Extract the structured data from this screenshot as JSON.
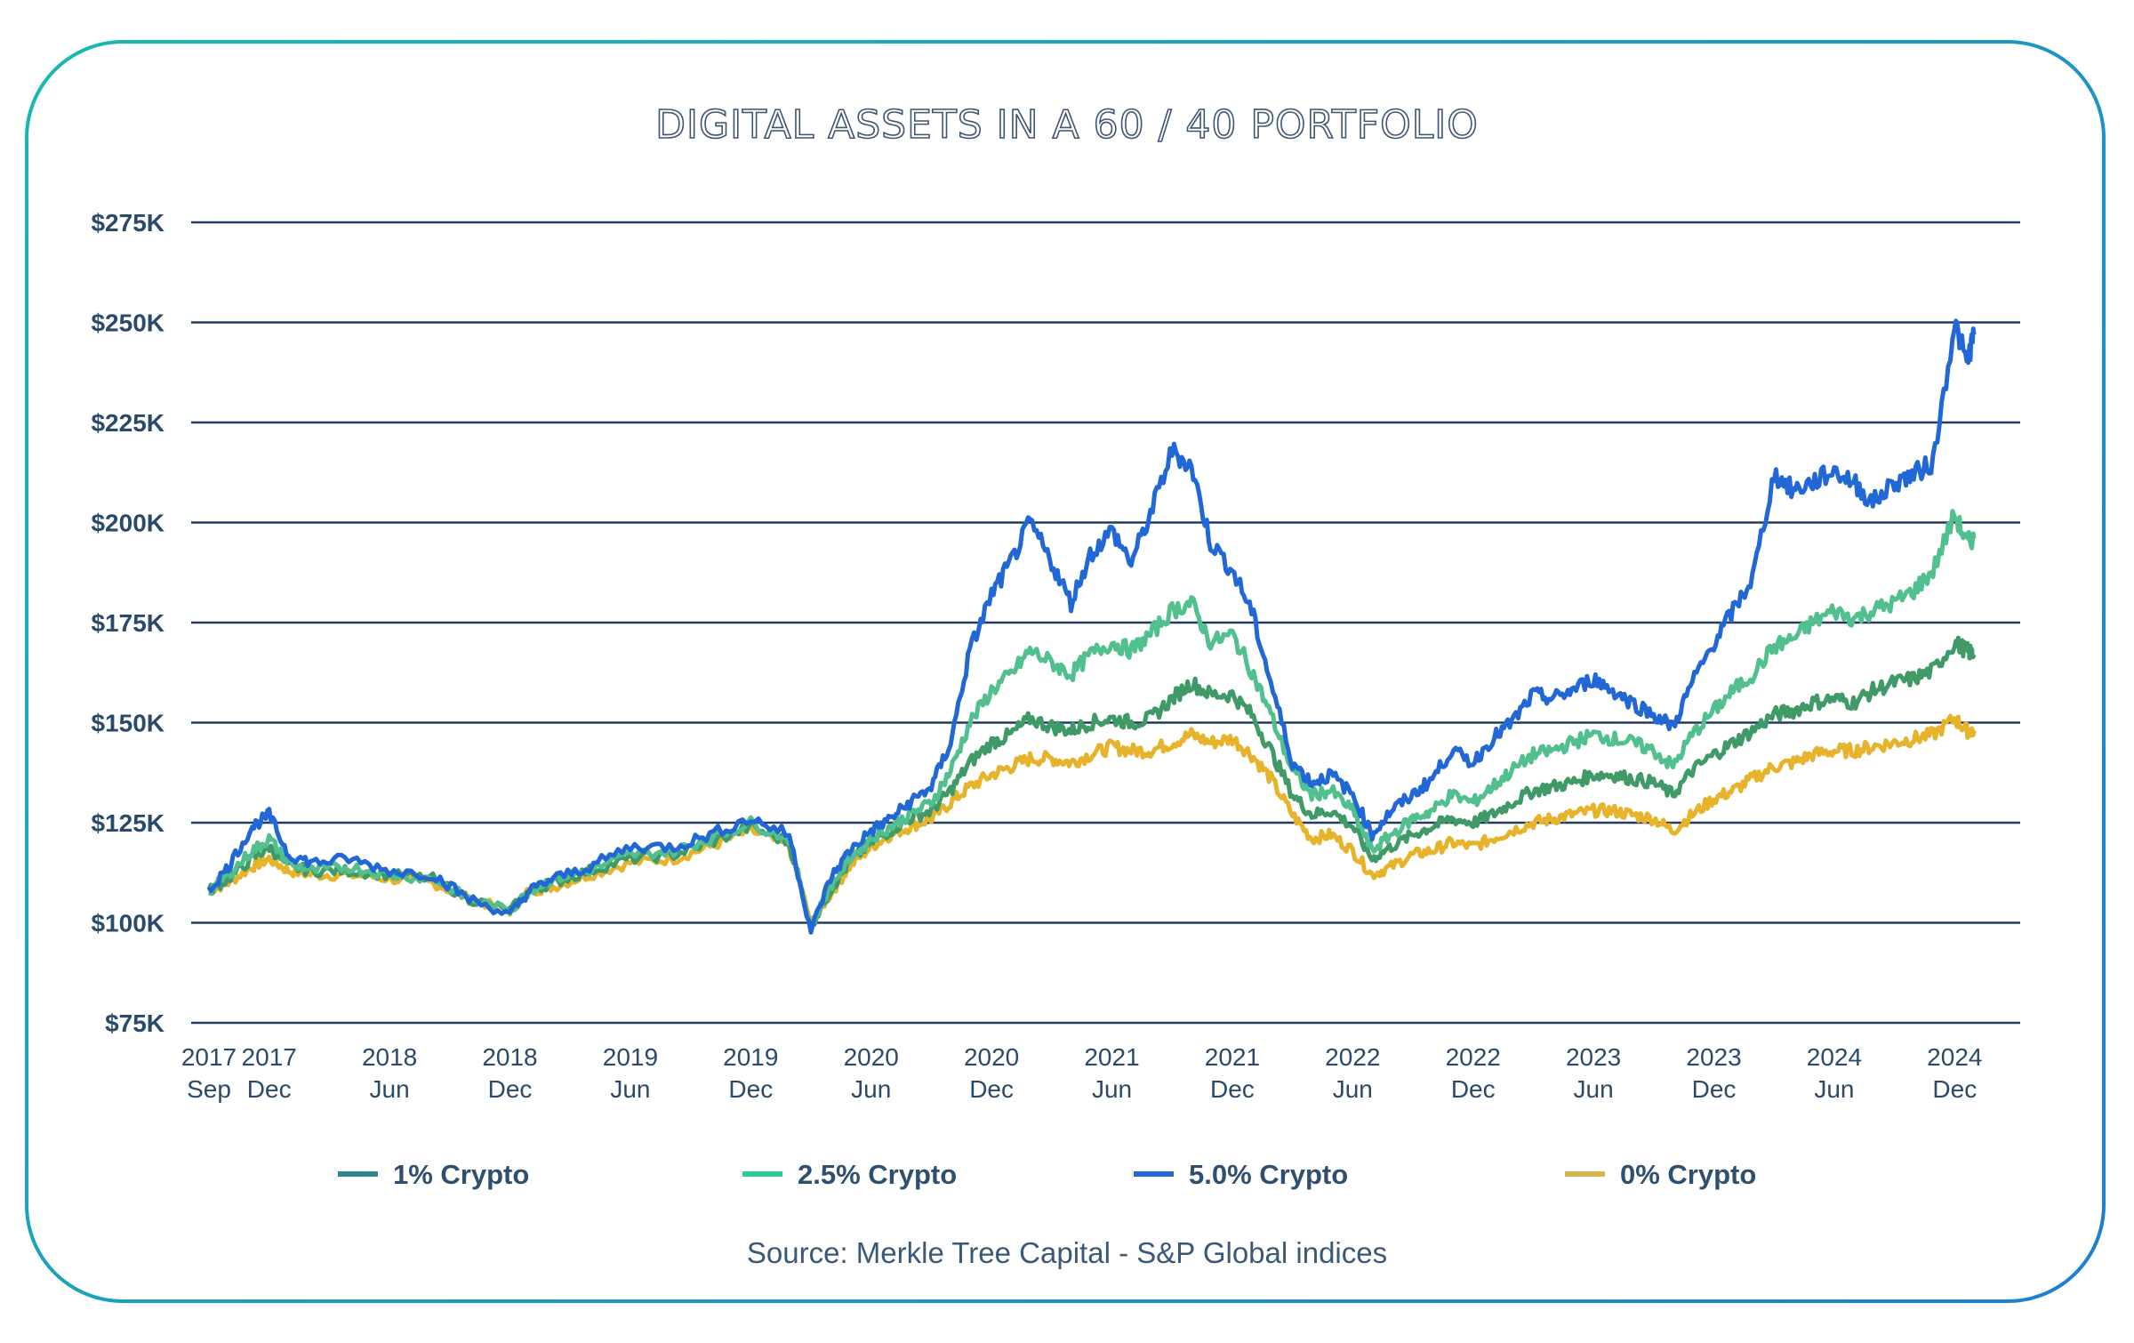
{
  "chart_data": {
    "type": "line",
    "title": "DIGITAL ASSETS IN A 60 / 40 PORTFOLIO",
    "source": "Source: Merkle Tree Capital  - S&P Global indices",
    "ylim": [
      75000,
      275000
    ],
    "y_ticks": [
      {
        "value": 75000,
        "label": "$75K"
      },
      {
        "value": 100000,
        "label": "$100K"
      },
      {
        "value": 125000,
        "label": "$125K"
      },
      {
        "value": 150000,
        "label": "$150K"
      },
      {
        "value": 175000,
        "label": "$175K"
      },
      {
        "value": 200000,
        "label": "$200K"
      },
      {
        "value": 225000,
        "label": "$225K"
      },
      {
        "value": 250000,
        "label": "$250K"
      },
      {
        "value": 275000,
        "label": "$275K"
      }
    ],
    "x_range": [
      2017.67,
      2025.0
    ],
    "x_ticks": [
      {
        "x": 2017.67,
        "year": "2017",
        "month": "Sep"
      },
      {
        "x": 2017.92,
        "year": "2017",
        "month": "Dec"
      },
      {
        "x": 2018.42,
        "year": "2018",
        "month": "Jun"
      },
      {
        "x": 2018.92,
        "year": "2018",
        "month": "Dec"
      },
      {
        "x": 2019.42,
        "year": "2019",
        "month": "Jun"
      },
      {
        "x": 2019.92,
        "year": "2019",
        "month": "Dec"
      },
      {
        "x": 2020.42,
        "year": "2020",
        "month": "Jun"
      },
      {
        "x": 2020.92,
        "year": "2020",
        "month": "Dec"
      },
      {
        "x": 2021.42,
        "year": "2021",
        "month": "Jun"
      },
      {
        "x": 2021.92,
        "year": "2021",
        "month": "Dec"
      },
      {
        "x": 2022.42,
        "year": "2022",
        "month": "Jun"
      },
      {
        "x": 2022.92,
        "year": "2022",
        "month": "Dec"
      },
      {
        "x": 2023.42,
        "year": "2023",
        "month": "Jun"
      },
      {
        "x": 2023.92,
        "year": "2023",
        "month": "Dec"
      },
      {
        "x": 2024.42,
        "year": "2024",
        "month": "Jun"
      },
      {
        "x": 2024.92,
        "year": "2024",
        "month": "Dec"
      }
    ],
    "legend_position": "bottom",
    "x": [
      2017.67,
      2017.75,
      2017.85,
      2017.92,
      2018.0,
      2018.1,
      2018.25,
      2018.42,
      2018.6,
      2018.75,
      2018.92,
      2019.0,
      2019.1,
      2019.25,
      2019.42,
      2019.6,
      2019.75,
      2019.92,
      2020.08,
      2020.17,
      2020.25,
      2020.33,
      2020.42,
      2020.5,
      2020.58,
      2020.67,
      2020.75,
      2020.83,
      2020.92,
      2021.0,
      2021.08,
      2021.17,
      2021.25,
      2021.33,
      2021.42,
      2021.5,
      2021.58,
      2021.67,
      2021.75,
      2021.83,
      2021.92,
      2022.0,
      2022.08,
      2022.17,
      2022.25,
      2022.33,
      2022.42,
      2022.5,
      2022.58,
      2022.67,
      2022.75,
      2022.83,
      2022.92,
      2023.0,
      2023.08,
      2023.17,
      2023.25,
      2023.33,
      2023.42,
      2023.5,
      2023.58,
      2023.67,
      2023.75,
      2023.83,
      2023.92,
      2024.0,
      2024.08,
      2024.17,
      2024.25,
      2024.33,
      2024.42,
      2024.5,
      2024.58,
      2024.67,
      2024.75,
      2024.83,
      2024.92,
      2024.97,
      2025.0
    ],
    "series": [
      {
        "name": "1% Crypto",
        "color": "#3f9a68",
        "legend_color": "#2e8a8a",
        "values": [
          108,
          111,
          116,
          119,
          114,
          113,
          113,
          112,
          111,
          106,
          103,
          108,
          110,
          113,
          116,
          117,
          120,
          124,
          120,
          99,
          108,
          115,
          120,
          123,
          126,
          128,
          133,
          140,
          145,
          147,
          151,
          149,
          148,
          150,
          151,
          150,
          151,
          156,
          160,
          157,
          157,
          152,
          143,
          132,
          127,
          128,
          124,
          116,
          119,
          122,
          124,
          126,
          125,
          127,
          130,
          133,
          134,
          135,
          137,
          137,
          136,
          135,
          132,
          138,
          142,
          145,
          148,
          152,
          153,
          155,
          156,
          155,
          158,
          160,
          161,
          163,
          170,
          168,
          167
        ]
      },
      {
        "name": "2.5% Crypto",
        "color": "#52c08e",
        "legend_color": "#2cc99a",
        "values": [
          108,
          112,
          118,
          121,
          115,
          113,
          114,
          112,
          111,
          106,
          103,
          108,
          111,
          113,
          117,
          118,
          121,
          125,
          121,
          99,
          109,
          116,
          121,
          124,
          127,
          130,
          138,
          150,
          158,
          162,
          168,
          165,
          162,
          167,
          170,
          168,
          172,
          178,
          180,
          170,
          172,
          163,
          152,
          138,
          132,
          133,
          128,
          118,
          122,
          126,
          128,
          132,
          130,
          134,
          138,
          142,
          143,
          145,
          147,
          146,
          145,
          143,
          139,
          147,
          153,
          158,
          162,
          169,
          171,
          175,
          178,
          176,
          178,
          180,
          183,
          188,
          202,
          195,
          196
        ]
      },
      {
        "name": "5.0% Crypto",
        "color": "#2167d6",
        "legend_color": "#2167d6",
        "values": [
          108,
          114,
          124,
          127,
          117,
          115,
          116,
          113,
          112,
          106,
          102,
          108,
          111,
          114,
          119,
          119,
          122,
          126,
          122,
          98,
          111,
          118,
          123,
          126,
          130,
          134,
          145,
          168,
          182,
          190,
          200,
          190,
          180,
          192,
          198,
          190,
          202,
          218,
          214,
          195,
          188,
          178,
          160,
          140,
          135,
          137,
          132,
          122,
          128,
          132,
          136,
          143,
          140,
          146,
          150,
          157,
          156,
          158,
          161,
          158,
          155,
          152,
          149,
          160,
          170,
          178,
          186,
          212,
          208,
          210,
          213,
          210,
          205,
          210,
          212,
          215,
          250,
          240,
          247
        ]
      },
      {
        "name": "0% Crypto",
        "color": "#e6b32b",
        "legend_color": "#d9b448",
        "values": [
          108,
          110,
          114,
          116,
          113,
          112,
          112,
          111,
          110,
          106,
          103,
          108,
          109,
          112,
          115,
          116,
          119,
          123,
          119,
          100,
          107,
          114,
          119,
          122,
          124,
          126,
          130,
          134,
          137,
          139,
          141,
          141,
          140,
          142,
          144,
          143,
          143,
          145,
          147,
          145,
          146,
          142,
          136,
          127,
          121,
          122,
          118,
          112,
          114,
          117,
          118,
          120,
          119,
          121,
          123,
          125,
          126,
          127,
          128,
          128,
          127,
          126,
          123,
          127,
          131,
          133,
          136,
          139,
          140,
          142,
          143,
          143,
          144,
          145,
          146,
          147,
          151,
          148,
          148
        ]
      }
    ]
  }
}
